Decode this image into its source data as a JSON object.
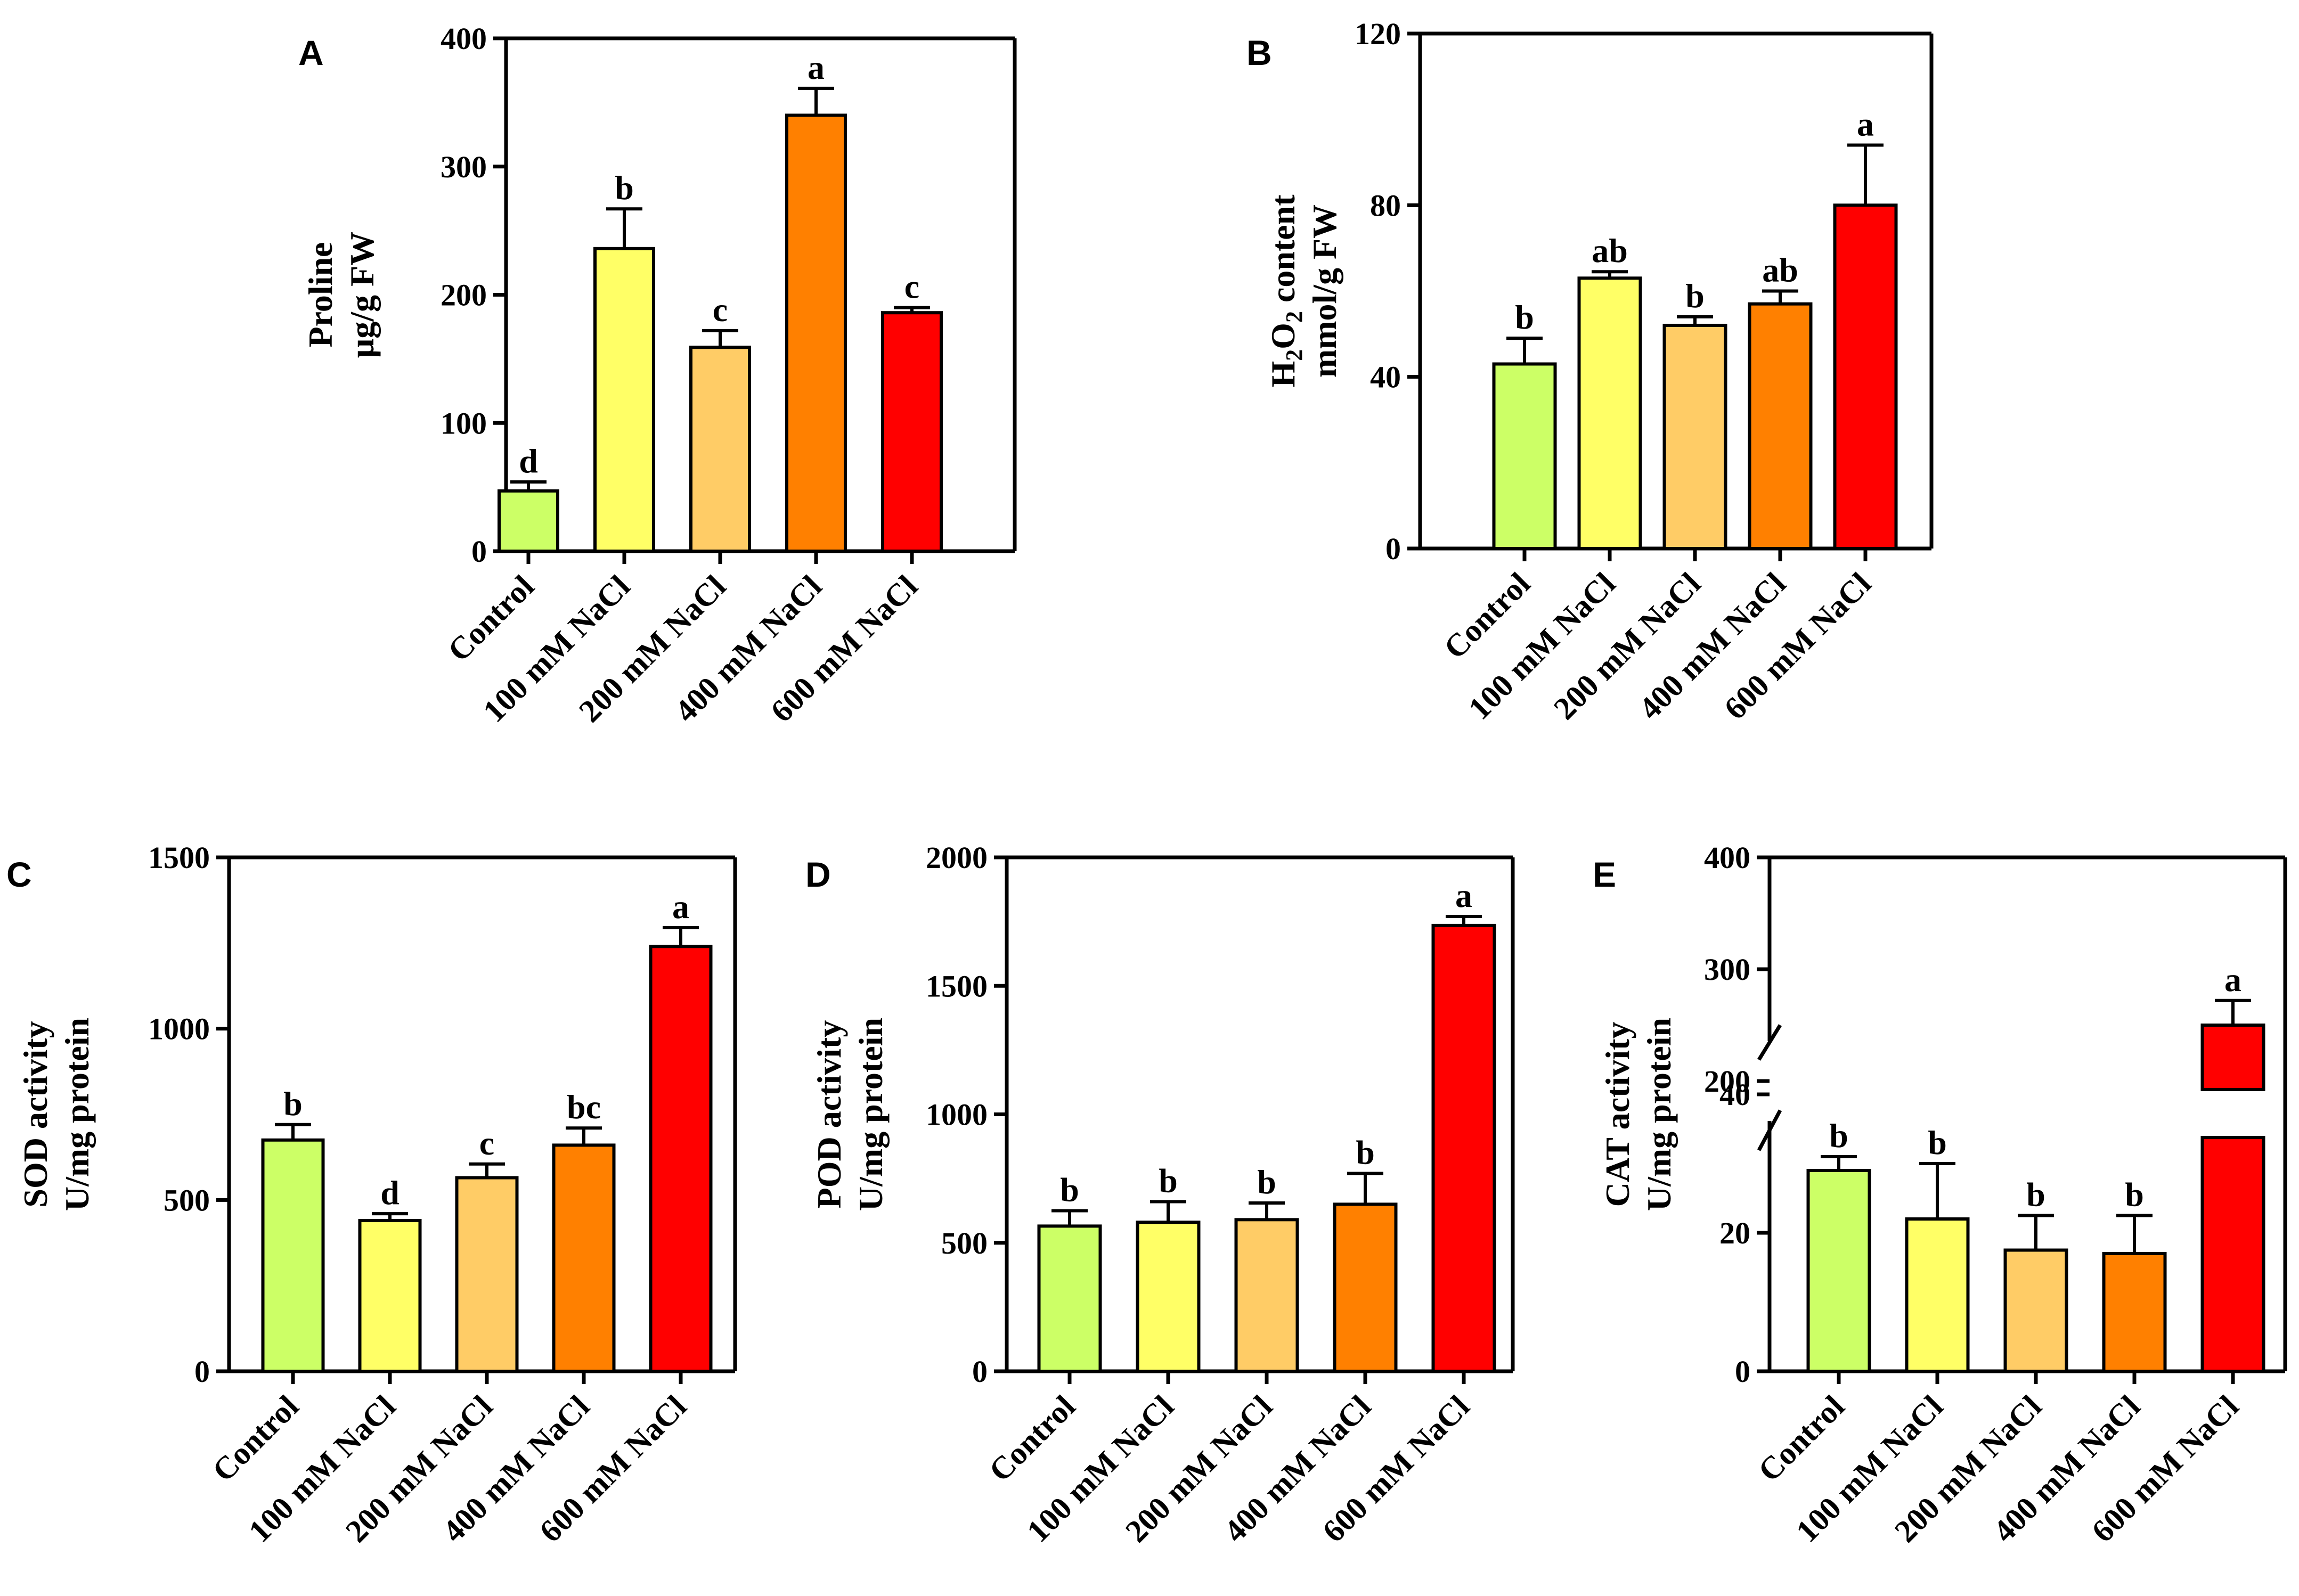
{
  "figure": {
    "colors": {
      "control": "#ccff66",
      "nacl_100": "#ffff66",
      "nacl_200": "#ffcc66",
      "nacl_400": "#ff8000",
      "nacl_600": "#ff0000",
      "axis": "#000000"
    }
  },
  "chart_data": [
    {
      "panel": "A",
      "type": "bar",
      "categories": [
        "Control",
        "100 mM NaCl",
        "200 mM NaCl",
        "400 mM NaCl",
        "600 mM NaCl"
      ],
      "values": [
        47,
        236,
        159,
        340,
        186
      ],
      "errors": [
        7,
        31,
        13,
        21,
        4
      ],
      "significance": [
        "d",
        "b",
        "c",
        "a",
        "c"
      ],
      "ylabel_lines": [
        "Proline",
        "μg/g FW"
      ],
      "ylim": [
        0,
        400
      ],
      "yticks": [
        "0",
        "100",
        "200",
        "300",
        "400"
      ]
    },
    {
      "panel": "B",
      "type": "bar",
      "categories": [
        "Control",
        "100 mM NaCl",
        "200 mM NaCl",
        "400 mM NaCl",
        "600 mM NaCl"
      ],
      "values": [
        43,
        63,
        52,
        57,
        80
      ],
      "errors": [
        6,
        1.5,
        2,
        3,
        14
      ],
      "significance": [
        "b",
        "ab",
        "b",
        "ab",
        "a"
      ],
      "ylabel_lines": [
        "H2O2 content",
        "mmol/g FW"
      ],
      "ylim": [
        0,
        120
      ],
      "yticks": [
        "0",
        "40",
        "80",
        "120"
      ]
    },
    {
      "panel": "C",
      "type": "bar",
      "categories": [
        "Control",
        "100 mM NaCl",
        "200 mM NaCl",
        "400 mM NaCl",
        "600 mM NaCl"
      ],
      "values": [
        675,
        440,
        565,
        660,
        1240
      ],
      "errors": [
        45,
        20,
        40,
        50,
        55
      ],
      "significance": [
        "b",
        "d",
        "c",
        "bc",
        "a"
      ],
      "ylabel_lines": [
        "SOD activity",
        "U/mg protein"
      ],
      "ylim": [
        0,
        1500
      ],
      "yticks": [
        "0",
        "500",
        "1000",
        "1500"
      ]
    },
    {
      "panel": "D",
      "type": "bar",
      "categories": [
        "Control",
        "100 mM NaCl",
        "200 mM NaCl",
        "400 mM NaCl",
        "600 mM NaCl"
      ],
      "values": [
        565,
        580,
        590,
        650,
        1735
      ],
      "errors": [
        60,
        80,
        65,
        120,
        35
      ],
      "significance": [
        "b",
        "b",
        "b",
        "b",
        "a"
      ],
      "ylabel_lines": [
        "POD activity",
        "U/mg protein"
      ],
      "ylim": [
        0,
        2000
      ],
      "yticks": [
        "0",
        "500",
        "1000",
        "1500",
        "2000"
      ]
    },
    {
      "panel": "E",
      "type": "bar",
      "categories": [
        "Control",
        "100 mM NaCl",
        "200 mM NaCl",
        "400 mM NaCl",
        "600 mM NaCl"
      ],
      "values": [
        29,
        22,
        17.5,
        17,
        250
      ],
      "errors": [
        2,
        8,
        5,
        5.5,
        22
      ],
      "significance": [
        "b",
        "b",
        "b",
        "b",
        "a"
      ],
      "ylabel_lines": [
        "CAT activity",
        "U/mg protein"
      ],
      "ylim": [
        0,
        400
      ],
      "axis_break": {
        "lower_range": [
          0,
          50
        ],
        "upper_range": [
          200,
          400
        ]
      },
      "yticks": [
        "0",
        "20",
        "40",
        "200",
        "300",
        "400"
      ]
    }
  ]
}
